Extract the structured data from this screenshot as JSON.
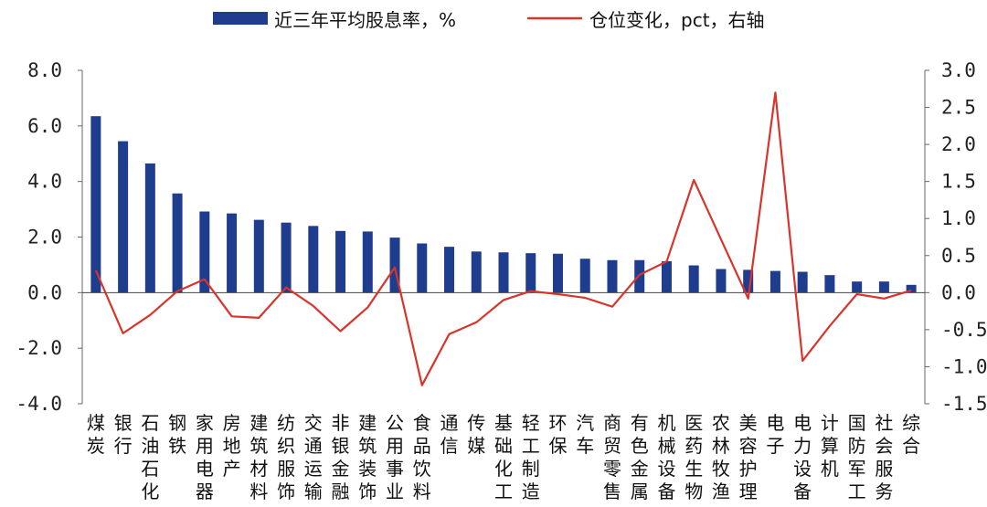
{
  "chart_data": {
    "type": "bar+line",
    "categories": [
      "煤炭",
      "银行",
      "石油石化",
      "钢铁",
      "家用电器",
      "房地产",
      "建筑材料",
      "纺织服饰",
      "交通运输",
      "非银金融",
      "建筑装饰",
      "公用事业",
      "食品饮料",
      "通信",
      "传媒",
      "基础化工",
      "轻工制造",
      "环保",
      "汽车",
      "商贸零售",
      "有色金属",
      "机械设备",
      "医药生物",
      "农林牧渔",
      "美容护理",
      "电子",
      "电力设备",
      "计算机",
      "国防军工",
      "社会服务",
      "综合"
    ],
    "series": [
      {
        "name": "近三年平均股息率，%",
        "type": "bar",
        "axis": "left",
        "color": "#1f3d8f",
        "values": [
          6.35,
          5.45,
          4.65,
          3.57,
          2.92,
          2.85,
          2.62,
          2.52,
          2.4,
          2.22,
          2.2,
          1.98,
          1.77,
          1.65,
          1.48,
          1.45,
          1.42,
          1.4,
          1.22,
          1.17,
          1.17,
          1.13,
          0.98,
          0.85,
          0.82,
          0.78,
          0.75,
          0.63,
          0.4,
          0.4,
          0.28
        ]
      },
      {
        "name": "仓位变化，pct，右轴",
        "type": "line",
        "axis": "right",
        "color": "#d9342b",
        "values": [
          0.3,
          -0.55,
          -0.3,
          0.02,
          0.18,
          -0.32,
          -0.34,
          0.07,
          -0.18,
          -0.52,
          -0.2,
          0.34,
          -1.25,
          -0.56,
          -0.4,
          -0.1,
          0.02,
          -0.02,
          -0.07,
          -0.19,
          0.24,
          0.42,
          1.52,
          0.72,
          -0.08,
          2.7,
          -0.92,
          -0.45,
          -0.02,
          -0.08,
          0.03
        ]
      }
    ],
    "left_axis": {
      "ylim": [
        -4.0,
        8.0
      ],
      "ticks": [
        "8.0",
        "6.0",
        "4.0",
        "2.0",
        "0.0",
        "-2.0",
        "-4.0"
      ],
      "tick_values": [
        8,
        6,
        4,
        2,
        0,
        -2,
        -4
      ]
    },
    "right_axis": {
      "ylim": [
        -1.5,
        3.0
      ],
      "ticks": [
        "3.0",
        "2.5",
        "2.0",
        "1.5",
        "1.0",
        "0.5",
        "0.0",
        "-0.5",
        "-1.0",
        "-1.5"
      ],
      "tick_values": [
        3.0,
        2.5,
        2.0,
        1.5,
        1.0,
        0.5,
        0.0,
        -0.5,
        -1.0,
        -1.5
      ]
    },
    "legend": {
      "placement": "top"
    }
  }
}
